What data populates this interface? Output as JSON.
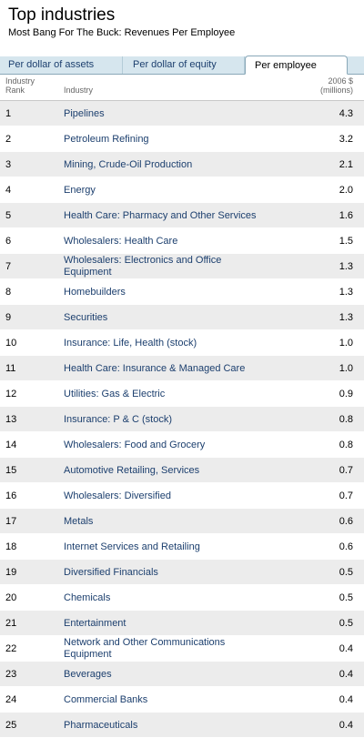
{
  "header": {
    "title": "Top industries",
    "subtitle": "Most Bang For The Buck: Revenues Per Employee"
  },
  "tabs": [
    {
      "label": "Per dollar of assets",
      "active": false
    },
    {
      "label": "Per dollar of equity",
      "active": false
    },
    {
      "label": "Per employee",
      "active": true
    }
  ],
  "columns": {
    "rank_line1": "Industry",
    "rank_line2": "Rank",
    "industry": "Industry",
    "value_line1": "2006 $",
    "value_line2": "(millions)"
  },
  "colors": {
    "link": "#1c3f6e",
    "tab_bg": "#d6e6ee",
    "row_shade": "#ececec"
  },
  "rows": [
    {
      "rank": "1",
      "name": "Pipelines",
      "value": "4.3"
    },
    {
      "rank": "2",
      "name": "Petroleum Refining",
      "value": "3.2"
    },
    {
      "rank": "3",
      "name": "Mining, Crude-Oil Production",
      "value": "2.1"
    },
    {
      "rank": "4",
      "name": "Energy",
      "value": "2.0"
    },
    {
      "rank": "5",
      "name": "Health Care: Pharmacy and Other Services",
      "value": "1.6"
    },
    {
      "rank": "6",
      "name": "Wholesalers: Health Care",
      "value": "1.5"
    },
    {
      "rank": "7",
      "name": "Wholesalers: Electronics and Office Equipment",
      "value": "1.3"
    },
    {
      "rank": "8",
      "name": "Homebuilders",
      "value": "1.3"
    },
    {
      "rank": "9",
      "name": "Securities",
      "value": "1.3"
    },
    {
      "rank": "10",
      "name": "Insurance: Life, Health (stock)",
      "value": "1.0"
    },
    {
      "rank": "11",
      "name": "Health Care: Insurance & Managed Care",
      "value": "1.0"
    },
    {
      "rank": "12",
      "name": "Utilities: Gas & Electric",
      "value": "0.9"
    },
    {
      "rank": "13",
      "name": "Insurance: P & C (stock)",
      "value": "0.8"
    },
    {
      "rank": "14",
      "name": "Wholesalers: Food and Grocery",
      "value": "0.8"
    },
    {
      "rank": "15",
      "name": "Automotive Retailing, Services",
      "value": "0.7"
    },
    {
      "rank": "16",
      "name": "Wholesalers: Diversified",
      "value": "0.7"
    },
    {
      "rank": "17",
      "name": "Metals",
      "value": "0.6"
    },
    {
      "rank": "18",
      "name": "Internet Services and Retailing",
      "value": "0.6"
    },
    {
      "rank": "19",
      "name": "Diversified Financials",
      "value": "0.5"
    },
    {
      "rank": "20",
      "name": "Chemicals",
      "value": "0.5"
    },
    {
      "rank": "21",
      "name": "Entertainment",
      "value": "0.5"
    },
    {
      "rank": "22",
      "name": "Network and Other Communications Equipment",
      "value": "0.4"
    },
    {
      "rank": "23",
      "name": "Beverages",
      "value": "0.4"
    },
    {
      "rank": "24",
      "name": "Commercial Banks",
      "value": "0.4"
    },
    {
      "rank": "25",
      "name": "Pharmaceuticals",
      "value": "0.4"
    }
  ]
}
